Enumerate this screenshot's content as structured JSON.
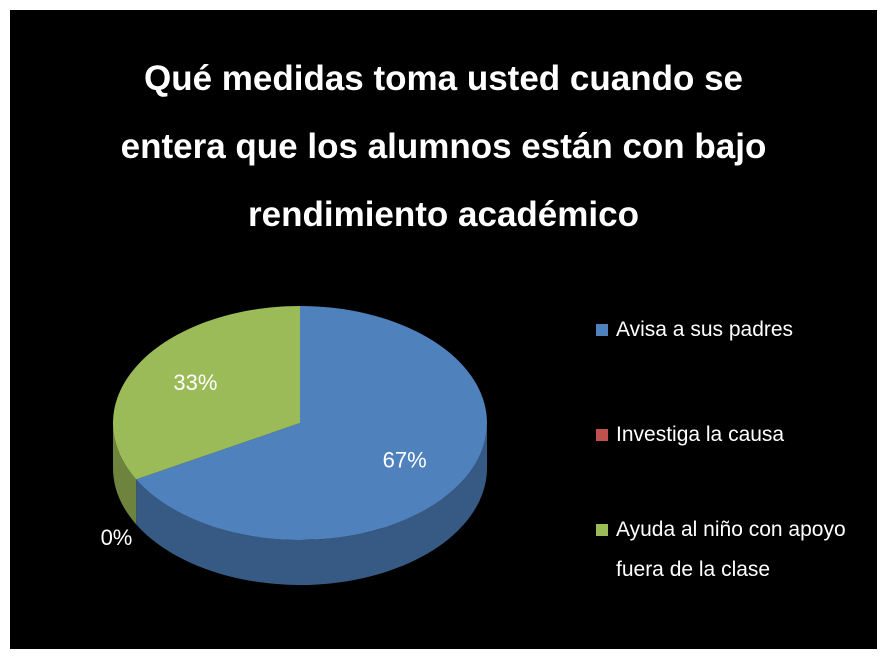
{
  "chart_data": {
    "type": "pie",
    "title": "Qué medidas toma usted cuando se entera que los alumnos están con bajo rendimiento académico",
    "categories": [
      "Avisa a sus padres",
      "Investiga la causa",
      "Ayuda al niño con apoyo fuera de la clase"
    ],
    "values": [
      67,
      0,
      33
    ],
    "value_labels": [
      "67%",
      "0%",
      "33%"
    ],
    "colors": [
      "#4f81bd",
      "#c0504d",
      "#9bbb59"
    ],
    "legend": "right"
  }
}
